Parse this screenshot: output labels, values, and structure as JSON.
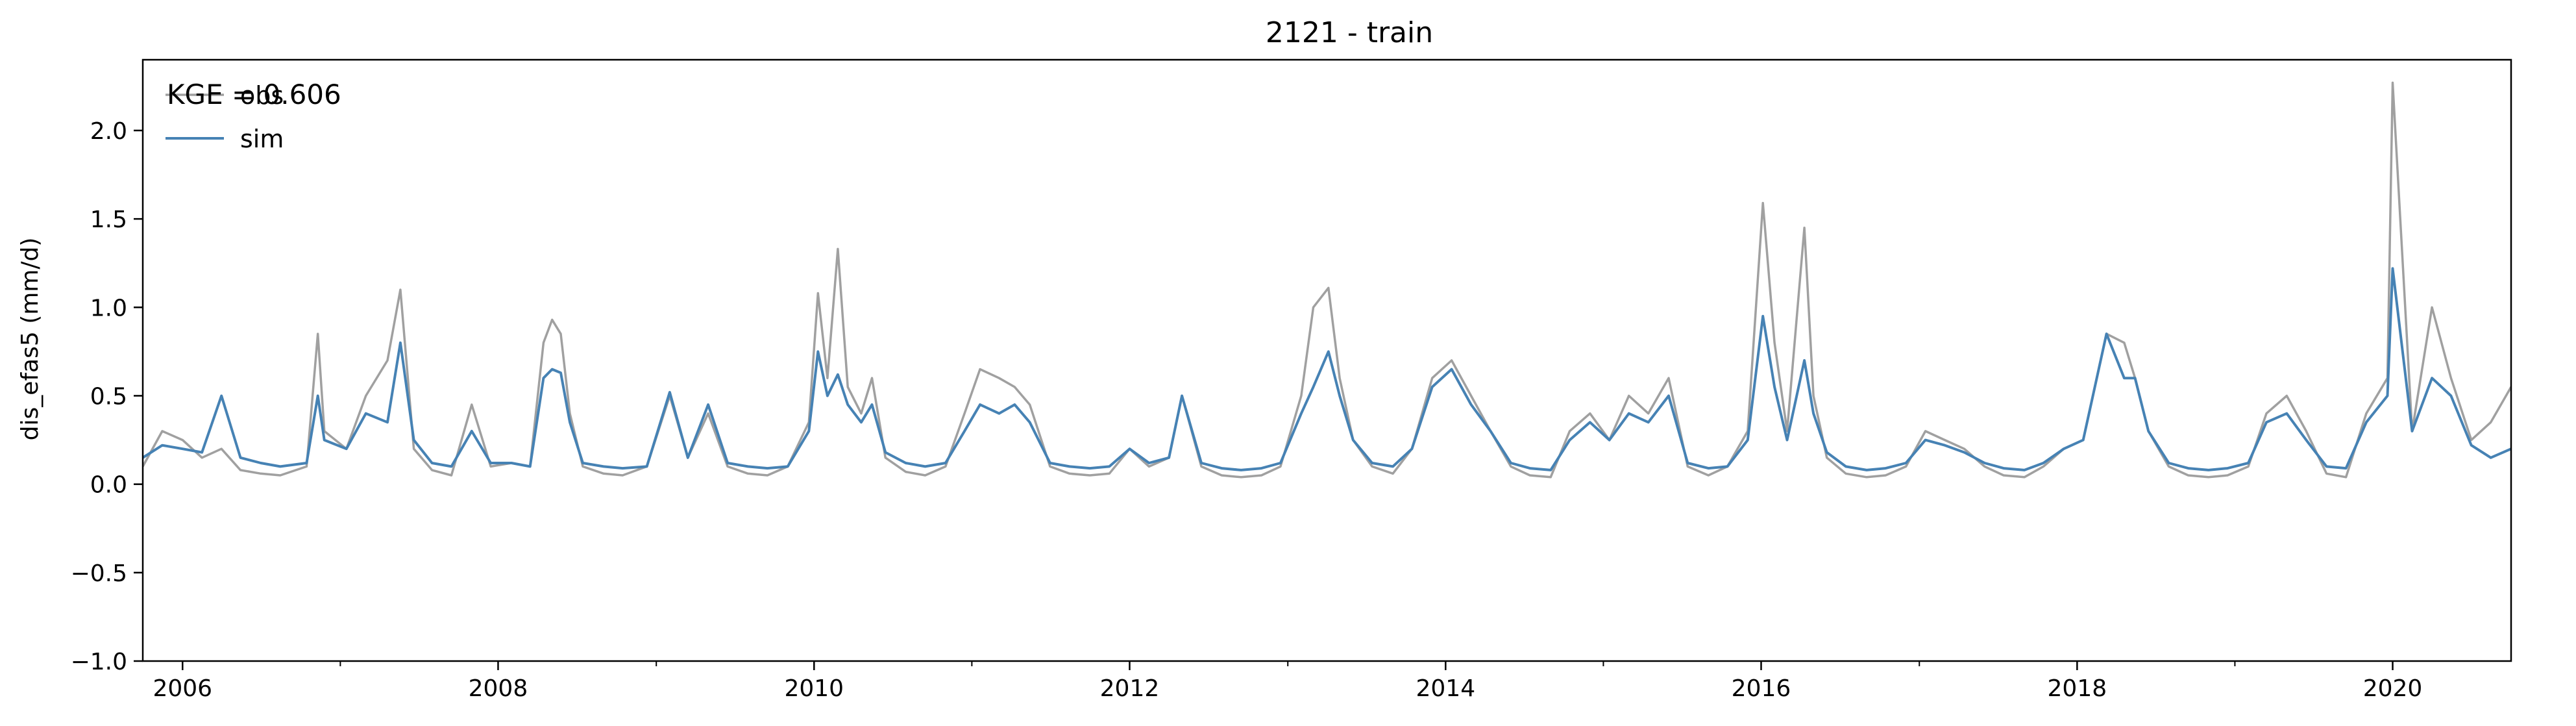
{
  "chart_data": {
    "type": "line",
    "title": "2121 - train",
    "xlabel": "",
    "ylabel": "dis_efas5 (mm/d)",
    "xlim": [
      "2005-10-01",
      "2020-10-01"
    ],
    "ylim": [
      -1.0,
      2.4
    ],
    "x_ticks": [
      "2006",
      "2008",
      "2010",
      "2012",
      "2014",
      "2016",
      "2018",
      "2020"
    ],
    "y_ticks": [
      "−1.0",
      "−0.5",
      "0.0",
      "0.5",
      "1.0",
      "1.5",
      "2.0"
    ],
    "y_tick_values": [
      -1.0,
      -0.5,
      0.0,
      0.5,
      1.0,
      1.5,
      2.0
    ],
    "grid": false,
    "legend_position": "top-left",
    "annotation": "KGE = 0.606",
    "series": [
      {
        "name": "obs",
        "color": "#a0a0a0",
        "x": [
          "2005-10-01",
          "2005-11-15",
          "2006-01-01",
          "2006-02-15",
          "2006-04-01",
          "2006-05-15",
          "2006-07-01",
          "2006-08-15",
          "2006-10-15",
          "2006-11-10",
          "2006-11-25",
          "2007-01-15",
          "2007-03-01",
          "2007-04-20",
          "2007-05-20",
          "2007-06-20",
          "2007-08-01",
          "2007-09-15",
          "2007-11-01",
          "2007-12-15",
          "2008-02-01",
          "2008-03-15",
          "2008-04-15",
          "2008-05-05",
          "2008-05-25",
          "2008-06-15",
          "2008-07-15",
          "2008-09-01",
          "2008-10-15",
          "2008-12-10",
          "2009-02-01",
          "2009-03-15",
          "2009-05-01",
          "2009-06-15",
          "2009-08-01",
          "2009-09-15",
          "2009-11-01",
          "2009-12-20",
          "2010-01-10",
          "2010-02-01",
          "2010-02-25",
          "2010-03-20",
          "2010-04-20",
          "2010-05-15",
          "2010-06-15",
          "2010-08-01",
          "2010-09-15",
          "2010-11-01",
          "2010-12-15",
          "2011-01-20",
          "2011-03-05",
          "2011-04-10",
          "2011-05-15",
          "2011-07-01",
          "2011-08-15",
          "2011-10-01",
          "2011-11-15",
          "2012-01-01",
          "2012-02-15",
          "2012-04-01",
          "2012-05-01",
          "2012-06-15",
          "2012-08-01",
          "2012-09-15",
          "2012-11-01",
          "2012-12-15",
          "2013-02-01",
          "2013-03-01",
          "2013-04-05",
          "2013-05-01",
          "2013-06-01",
          "2013-07-15",
          "2013-09-01",
          "2013-10-15",
          "2013-12-01",
          "2014-01-15",
          "2014-03-01",
          "2014-04-15",
          "2014-06-01",
          "2014-07-15",
          "2014-09-01",
          "2014-10-15",
          "2014-12-01",
          "2015-01-15",
          "2015-03-01",
          "2015-04-15",
          "2015-06-01",
          "2015-07-15",
          "2015-09-01",
          "2015-10-15",
          "2015-12-01",
          "2016-01-05",
          "2016-02-01",
          "2016-03-01",
          "2016-04-10",
          "2016-05-01",
          "2016-06-01",
          "2016-07-15",
          "2016-09-01",
          "2016-10-15",
          "2016-12-01",
          "2017-01-15",
          "2017-03-01",
          "2017-04-15",
          "2017-06-01",
          "2017-07-15",
          "2017-09-01",
          "2017-10-15",
          "2017-12-01",
          "2018-01-15",
          "2018-03-10",
          "2018-04-20",
          "2018-05-15",
          "2018-06-15",
          "2018-08-01",
          "2018-09-15",
          "2018-11-01",
          "2018-12-15",
          "2019-02-01",
          "2019-03-15",
          "2019-05-01",
          "2019-06-15",
          "2019-08-01",
          "2019-09-15",
          "2019-11-01",
          "2019-12-20",
          "2020-01-01",
          "2020-02-15",
          "2020-04-01",
          "2020-05-15",
          "2020-07-01",
          "2020-08-15",
          "2020-10-01"
        ],
        "y": [
          0.1,
          0.3,
          0.25,
          0.15,
          0.2,
          0.08,
          0.06,
          0.05,
          0.1,
          0.85,
          0.3,
          0.2,
          0.5,
          0.7,
          1.1,
          0.2,
          0.08,
          0.05,
          0.45,
          0.1,
          0.12,
          0.1,
          0.8,
          0.93,
          0.85,
          0.4,
          0.1,
          0.06,
          0.05,
          0.1,
          0.5,
          0.15,
          0.4,
          0.1,
          0.06,
          0.05,
          0.1,
          0.35,
          1.08,
          0.6,
          1.33,
          0.55,
          0.4,
          0.6,
          0.15,
          0.07,
          0.05,
          0.1,
          0.4,
          0.65,
          0.6,
          0.55,
          0.45,
          0.1,
          0.06,
          0.05,
          0.06,
          0.2,
          0.1,
          0.15,
          0.5,
          0.1,
          0.05,
          0.04,
          0.05,
          0.1,
          0.5,
          1.0,
          1.11,
          0.6,
          0.25,
          0.1,
          0.06,
          0.2,
          0.6,
          0.7,
          0.5,
          0.3,
          0.1,
          0.05,
          0.04,
          0.3,
          0.4,
          0.25,
          0.5,
          0.4,
          0.6,
          0.1,
          0.05,
          0.1,
          0.3,
          1.59,
          0.8,
          0.3,
          1.45,
          0.5,
          0.15,
          0.06,
          0.04,
          0.05,
          0.1,
          0.3,
          0.25,
          0.2,
          0.1,
          0.05,
          0.04,
          0.1,
          0.2,
          0.25,
          0.85,
          0.8,
          0.6,
          0.3,
          0.1,
          0.05,
          0.04,
          0.05,
          0.1,
          0.4,
          0.5,
          0.3,
          0.06,
          0.04,
          0.4,
          0.6,
          2.27,
          0.3,
          1.0,
          0.6,
          0.25,
          0.35,
          0.55
        ]
      },
      {
        "name": "sim",
        "color": "#4682b4",
        "x": [
          "2005-10-01",
          "2005-11-15",
          "2006-01-01",
          "2006-02-15",
          "2006-04-01",
          "2006-05-15",
          "2006-07-01",
          "2006-08-15",
          "2006-10-15",
          "2006-11-10",
          "2006-11-25",
          "2007-01-15",
          "2007-03-01",
          "2007-04-20",
          "2007-05-20",
          "2007-06-20",
          "2007-08-01",
          "2007-09-15",
          "2007-11-01",
          "2007-12-15",
          "2008-02-01",
          "2008-03-15",
          "2008-04-15",
          "2008-05-05",
          "2008-05-25",
          "2008-06-15",
          "2008-07-15",
          "2008-09-01",
          "2008-10-15",
          "2008-12-10",
          "2009-02-01",
          "2009-03-15",
          "2009-05-01",
          "2009-06-15",
          "2009-08-01",
          "2009-09-15",
          "2009-11-01",
          "2009-12-20",
          "2010-01-10",
          "2010-02-01",
          "2010-02-25",
          "2010-03-20",
          "2010-04-20",
          "2010-05-15",
          "2010-06-15",
          "2010-08-01",
          "2010-09-15",
          "2010-11-01",
          "2010-12-15",
          "2011-01-20",
          "2011-03-05",
          "2011-04-10",
          "2011-05-15",
          "2011-07-01",
          "2011-08-15",
          "2011-10-01",
          "2011-11-15",
          "2012-01-01",
          "2012-02-15",
          "2012-04-01",
          "2012-05-01",
          "2012-06-15",
          "2012-08-01",
          "2012-09-15",
          "2012-11-01",
          "2012-12-15",
          "2013-02-01",
          "2013-03-01",
          "2013-04-05",
          "2013-05-01",
          "2013-06-01",
          "2013-07-15",
          "2013-09-01",
          "2013-10-15",
          "2013-12-01",
          "2014-01-15",
          "2014-03-01",
          "2014-04-15",
          "2014-06-01",
          "2014-07-15",
          "2014-09-01",
          "2014-10-15",
          "2014-12-01",
          "2015-01-15",
          "2015-03-01",
          "2015-04-15",
          "2015-06-01",
          "2015-07-15",
          "2015-09-01",
          "2015-10-15",
          "2015-12-01",
          "2016-01-05",
          "2016-02-01",
          "2016-03-01",
          "2016-04-10",
          "2016-05-01",
          "2016-06-01",
          "2016-07-15",
          "2016-09-01",
          "2016-10-15",
          "2016-12-01",
          "2017-01-15",
          "2017-03-01",
          "2017-04-15",
          "2017-06-01",
          "2017-07-15",
          "2017-09-01",
          "2017-10-15",
          "2017-12-01",
          "2018-01-15",
          "2018-03-10",
          "2018-04-20",
          "2018-05-15",
          "2018-06-15",
          "2018-08-01",
          "2018-09-15",
          "2018-11-01",
          "2018-12-15",
          "2019-02-01",
          "2019-03-15",
          "2019-05-01",
          "2019-06-15",
          "2019-08-01",
          "2019-09-15",
          "2019-11-01",
          "2019-12-20",
          "2020-01-01",
          "2020-02-15",
          "2020-04-01",
          "2020-05-15",
          "2020-07-01",
          "2020-08-15",
          "2020-10-01"
        ],
        "y": [
          0.15,
          0.22,
          0.2,
          0.18,
          0.5,
          0.15,
          0.12,
          0.1,
          0.12,
          0.5,
          0.25,
          0.2,
          0.4,
          0.35,
          0.8,
          0.25,
          0.12,
          0.1,
          0.3,
          0.12,
          0.12,
          0.1,
          0.6,
          0.65,
          0.63,
          0.35,
          0.12,
          0.1,
          0.09,
          0.1,
          0.52,
          0.15,
          0.45,
          0.12,
          0.1,
          0.09,
          0.1,
          0.3,
          0.75,
          0.5,
          0.62,
          0.45,
          0.35,
          0.45,
          0.18,
          0.12,
          0.1,
          0.12,
          0.3,
          0.45,
          0.4,
          0.45,
          0.35,
          0.12,
          0.1,
          0.09,
          0.1,
          0.2,
          0.12,
          0.15,
          0.5,
          0.12,
          0.09,
          0.08,
          0.09,
          0.12,
          0.4,
          0.55,
          0.75,
          0.5,
          0.25,
          0.12,
          0.1,
          0.2,
          0.55,
          0.65,
          0.45,
          0.3,
          0.12,
          0.09,
          0.08,
          0.25,
          0.35,
          0.25,
          0.4,
          0.35,
          0.5,
          0.12,
          0.09,
          0.1,
          0.25,
          0.95,
          0.55,
          0.25,
          0.7,
          0.4,
          0.18,
          0.1,
          0.08,
          0.09,
          0.12,
          0.25,
          0.22,
          0.18,
          0.12,
          0.09,
          0.08,
          0.12,
          0.2,
          0.25,
          0.85,
          0.6,
          0.6,
          0.3,
          0.12,
          0.09,
          0.08,
          0.09,
          0.12,
          0.35,
          0.4,
          0.25,
          0.1,
          0.09,
          0.35,
          0.5,
          1.22,
          0.3,
          0.6,
          0.5,
          0.22,
          0.15,
          0.2
        ]
      }
    ]
  }
}
